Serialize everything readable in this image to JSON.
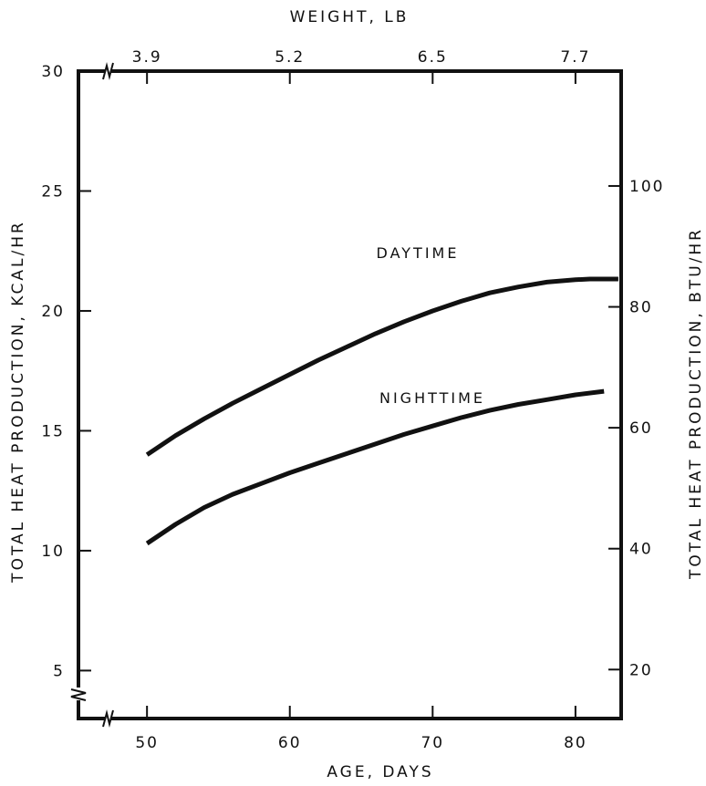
{
  "chart_data": {
    "type": "line",
    "xlabel": "AGE, DAYS",
    "x2label": "WEIGHT, LB",
    "ylabel": "TOTAL HEAT PRODUCTION,  KCAL/HR",
    "y2label": "TOTAL HEAT PRODUCTION, BTU/HR",
    "xlim": [
      45.2,
      83.2
    ],
    "ylim": [
      3.0,
      30.0
    ],
    "y2lim": [
      11.9,
      119.0
    ],
    "x_ticks": [
      "50",
      "60",
      "70",
      "80"
    ],
    "x2_ticks": [
      {
        "label": "3.9",
        "x": 50
      },
      {
        "label": "5.2",
        "x": 60
      },
      {
        "label": "6.5",
        "x": 70
      },
      {
        "label": "7.7",
        "x": 80
      }
    ],
    "y_ticks": [
      "5",
      "10",
      "15",
      "20",
      "25",
      "30"
    ],
    "y2_ticks": [
      "20",
      "40",
      "60",
      "80",
      "100"
    ],
    "axis_breaks": [
      "x",
      "y"
    ],
    "grid": false,
    "series": [
      {
        "name": "DAYTIME",
        "x": [
          50,
          52,
          54,
          56,
          58,
          60,
          62,
          64,
          66,
          68,
          70,
          72,
          74,
          76,
          78,
          80,
          81,
          82,
          83
        ],
        "y": [
          14.0,
          14.8,
          15.5,
          16.15,
          16.75,
          17.35,
          17.95,
          18.5,
          19.05,
          19.55,
          20.0,
          20.4,
          20.75,
          21.0,
          21.2,
          21.3,
          21.33,
          21.33,
          21.33
        ]
      },
      {
        "name": "NIGHTTIME",
        "x": [
          50,
          52,
          54,
          56,
          58,
          60,
          62,
          64,
          66,
          68,
          70,
          72,
          74,
          76,
          78,
          80,
          82
        ],
        "y": [
          10.3,
          11.1,
          11.8,
          12.35,
          12.8,
          13.25,
          13.65,
          14.05,
          14.45,
          14.85,
          15.2,
          15.55,
          15.85,
          16.1,
          16.3,
          16.5,
          16.65
        ]
      }
    ]
  }
}
